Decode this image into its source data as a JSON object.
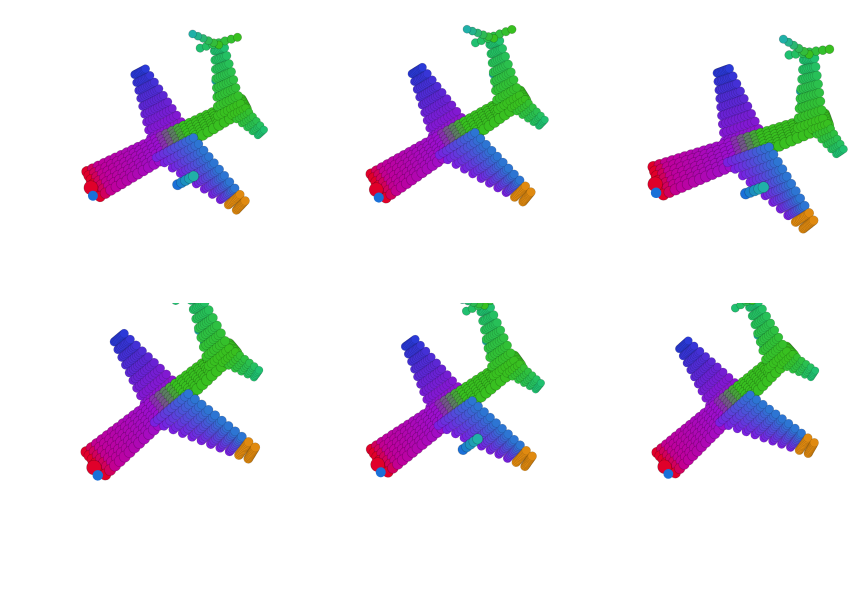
{
  "figure": {
    "layout": {
      "rows": 2,
      "cols": 3
    },
    "panels": [
      {
        "subject": "airplane-point-cloud",
        "view": "front-left-tilted"
      },
      {
        "subject": "airplane-point-cloud",
        "view": "front-left-high"
      },
      {
        "subject": "airplane-point-cloud",
        "view": "front-left-wide"
      },
      {
        "subject": "airplane-point-cloud",
        "view": "front-left-low"
      },
      {
        "subject": "airplane-point-cloud",
        "view": "front-left-flat"
      },
      {
        "subject": "airplane-point-cloud",
        "view": "front-left-steep"
      }
    ],
    "palette": {
      "nose": "#e0002a",
      "fuselage": "#c0009a",
      "fuselage_mid": "#9a10d0",
      "wing_root": "#7a20e0",
      "wing_tip_left": "#2a3ad8",
      "wing_tip_right": "#e08a10",
      "wing_trailing": "#1a8ad0",
      "tail": "#38c020",
      "tail_fin": "#20c070",
      "stabilizer": "#20b0a8",
      "engine": "#1a70d8"
    }
  }
}
